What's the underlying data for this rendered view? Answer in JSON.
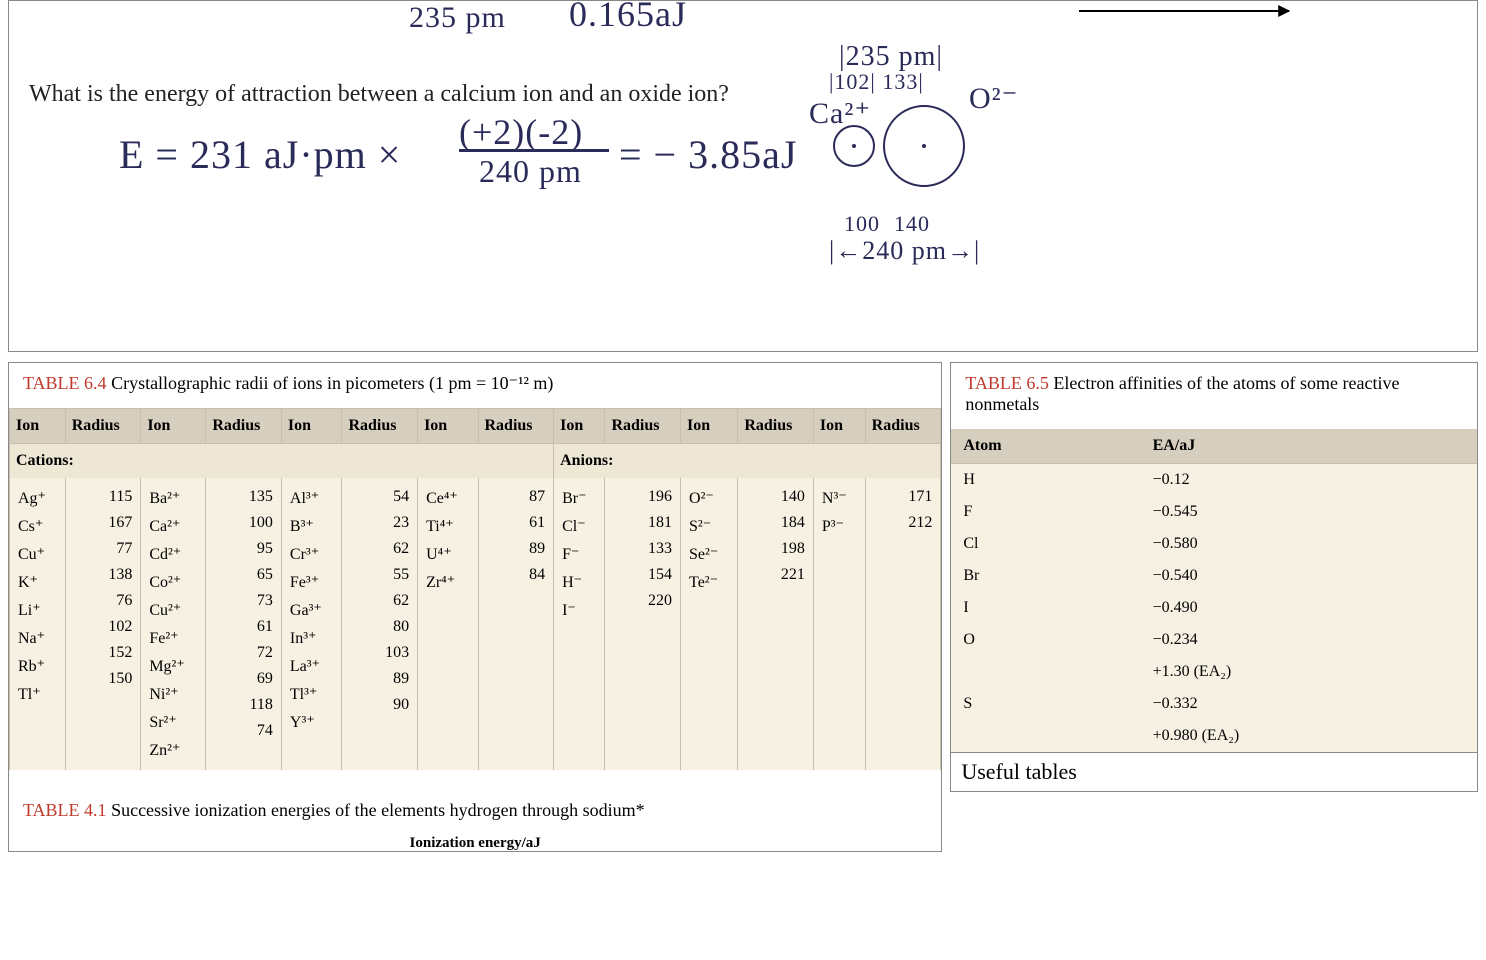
{
  "whiteboard": {
    "top_fragment_1": "235 pm",
    "top_fragment_2": "0.165aJ",
    "question": "What is the energy of attraction between a calcium ion and an oxide ion?",
    "equation_lhs": "E = 231 aJ·pm ×",
    "equation_num": "(+2)(-2)",
    "equation_den": "240 pm",
    "equation_rhs": "= − 3.85aJ",
    "side_top": "235 pm",
    "side_102": "102",
    "side_133": "133",
    "ca_label": "Ca²⁺",
    "o_label": "O²⁻",
    "side_100": "100",
    "side_140": "140",
    "side_240": "240 pm"
  },
  "table64": {
    "title_red": "TABLE 6.4",
    "title_rest": " Crystallographic radii of ions in picometers (1 pm = 10⁻¹² m)",
    "head_ion": "Ion",
    "head_radius": "Radius",
    "cations_label": "Cations:",
    "anions_label": "Anions:",
    "col1": [
      [
        "Ag⁺",
        "115"
      ],
      [
        "Cs⁺",
        "167"
      ],
      [
        "Cu⁺",
        "77"
      ],
      [
        "K⁺",
        "138"
      ],
      [
        "Li⁺",
        "76"
      ],
      [
        "Na⁺",
        "102"
      ],
      [
        "Rb⁺",
        "152"
      ],
      [
        "Tl⁺",
        "150"
      ]
    ],
    "col2": [
      [
        "Ba²⁺",
        "135"
      ],
      [
        "Ca²⁺",
        "100"
      ],
      [
        "Cd²⁺",
        "95"
      ],
      [
        "Co²⁺",
        "65"
      ],
      [
        "Cu²⁺",
        "73"
      ],
      [
        "Fe²⁺",
        "61"
      ],
      [
        "Mg²⁺",
        "72"
      ],
      [
        "Ni²⁺",
        "69"
      ],
      [
        "Sr²⁺",
        "118"
      ],
      [
        "Zn²⁺",
        "74"
      ]
    ],
    "col3": [
      [
        "Al³⁺",
        "54"
      ],
      [
        "B³⁺",
        "23"
      ],
      [
        "Cr³⁺",
        "62"
      ],
      [
        "Fe³⁺",
        "55"
      ],
      [
        "Ga³⁺",
        "62"
      ],
      [
        "In³⁺",
        "80"
      ],
      [
        "La³⁺",
        "103"
      ],
      [
        "Tl³⁺",
        "89"
      ],
      [
        "Y³⁺",
        "90"
      ]
    ],
    "col4": [
      [
        "Ce⁴⁺",
        "87"
      ],
      [
        "Ti⁴⁺",
        "61"
      ],
      [
        "U⁴⁺",
        "89"
      ],
      [
        "Zr⁴⁺",
        "84"
      ]
    ],
    "col5": [
      [
        "Br⁻",
        "196"
      ],
      [
        "Cl⁻",
        "181"
      ],
      [
        "F⁻",
        "133"
      ],
      [
        "H⁻",
        "154"
      ],
      [
        "I⁻",
        "220"
      ]
    ],
    "col6": [
      [
        "O²⁻",
        "140"
      ],
      [
        "S²⁻",
        "184"
      ],
      [
        "Se²⁻",
        "198"
      ],
      [
        "Te²⁻",
        "221"
      ]
    ],
    "col7": [
      [
        "N³⁻",
        "171"
      ],
      [
        "P³⁻",
        "212"
      ]
    ]
  },
  "table65": {
    "title_red": "TABLE 6.5",
    "title_rest": " Electron affinities of the atoms of some reactive nonmetals",
    "head_atom": "Atom",
    "head_ea": "EA/aJ",
    "rows": [
      [
        "H",
        "−0.12"
      ],
      [
        "F",
        "−0.545"
      ],
      [
        "Cl",
        "−0.580"
      ],
      [
        "Br",
        "−0.540"
      ],
      [
        "I",
        "−0.490"
      ],
      [
        "O",
        "−0.234"
      ],
      [
        "",
        "+1.30 (EA₂)"
      ],
      [
        "S",
        "−0.332"
      ],
      [
        "",
        "+0.980 (EA₂)"
      ]
    ]
  },
  "table41": {
    "title_red": "TABLE 4.1",
    "title_rest": " Successive ionization energies of the elements hydrogen through sodium*",
    "fragment": "Ionization energy/aJ"
  },
  "useful_label": "Useful tables",
  "style": {
    "handwriting_color": "#2b2b5a",
    "table_header_bg": "#d6cfbf",
    "table_body_bg": "#f7f1e3",
    "table_section_bg": "#eee7d6",
    "title_red_color": "#c0392b"
  }
}
